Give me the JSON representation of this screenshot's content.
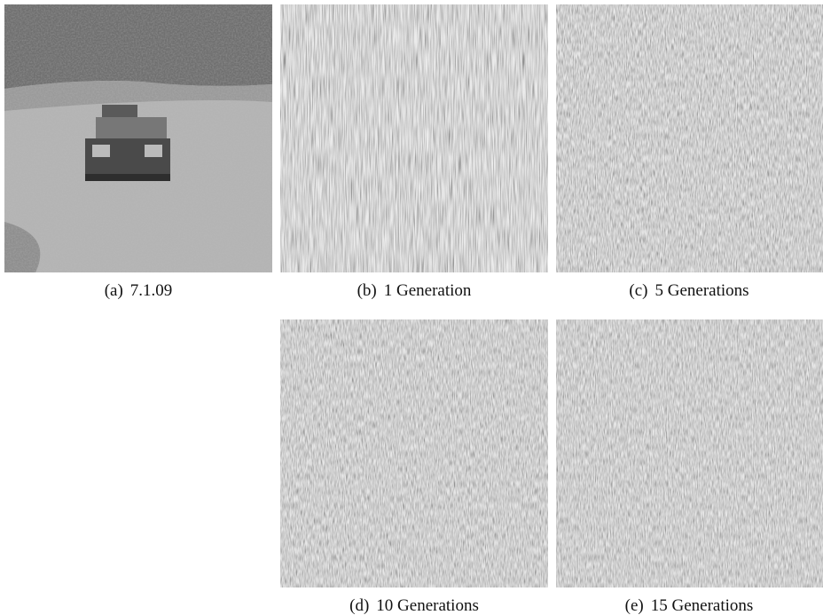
{
  "figure": {
    "panels": [
      {
        "label": "(a)",
        "caption": "7.1.09"
      },
      {
        "label": "(b)",
        "caption": "1 Generation"
      },
      {
        "label": "(c)",
        "caption": "5 Generations"
      },
      {
        "label": "(d)",
        "caption": "10 Generations"
      },
      {
        "label": "(e)",
        "caption": "15 Generations"
      }
    ]
  }
}
